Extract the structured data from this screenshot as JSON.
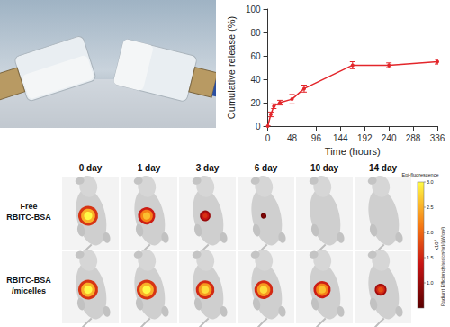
{
  "chart_data": {
    "type": "line",
    "x_label": "Time (hours)",
    "y_label": "Cumulative release (%)",
    "x": [
      0,
      6,
      12,
      24,
      48,
      72,
      168,
      240,
      336
    ],
    "values": [
      0,
      10,
      17,
      20,
      23,
      32,
      52,
      52,
      55
    ],
    "errors": [
      0,
      2,
      2,
      2,
      4,
      3,
      3,
      2,
      2
    ],
    "color": "#e3262b",
    "marker": "circle",
    "xlim": [
      0,
      336
    ],
    "xticks": [
      0,
      48,
      96,
      144,
      192,
      240,
      288,
      336
    ],
    "ylim": [
      0,
      100
    ],
    "yticks": [
      0,
      20,
      40,
      60,
      80,
      100
    ],
    "grid": false
  },
  "imaging": {
    "columns": [
      "0 day",
      "1 day",
      "3 day",
      "6 day",
      "10 day",
      "14 day"
    ],
    "rows": [
      {
        "label": [
          "Free",
          "RBITC-BSA"
        ],
        "signal": [
          3.0,
          2.6,
          1.6,
          0.8,
          null,
          null
        ]
      },
      {
        "label": [
          "RBITC-BSA",
          "/micelles"
        ],
        "signal": [
          3.0,
          3.0,
          2.8,
          2.8,
          2.6,
          1.8
        ]
      }
    ],
    "colorbar": {
      "title": "Epi-fluorescence",
      "multiplier": "x10⁸",
      "label": "Radiant Efficiency",
      "units": "(p/sec/cm²/sr)/(µW/cm²)",
      "range": [
        0.5,
        3.0
      ],
      "ticks": [
        {
          "value": 1,
          "label": "1.0"
        },
        {
          "value": 1.5,
          "label": "1.5"
        },
        {
          "value": 2,
          "label": "2.0"
        },
        {
          "value": 2.5,
          "label": "2.5"
        },
        {
          "value": 3,
          "label": "3.0"
        }
      ]
    }
  }
}
